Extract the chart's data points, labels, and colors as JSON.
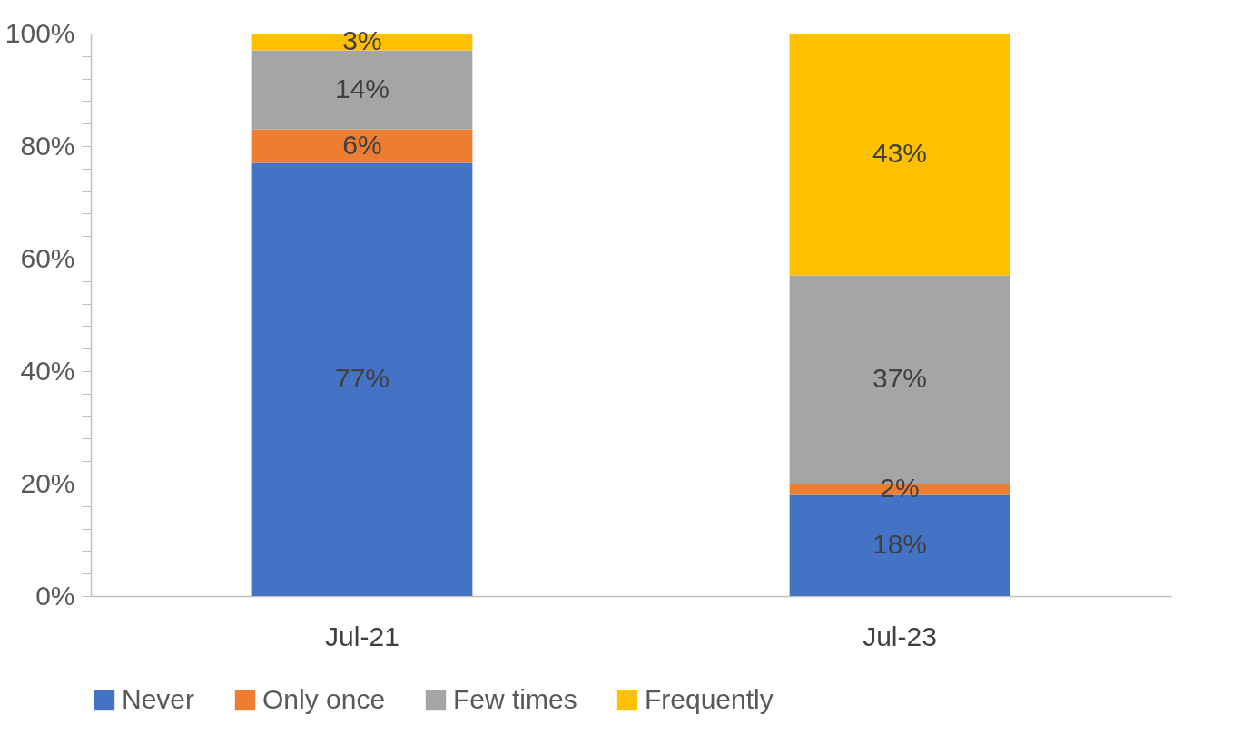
{
  "chart_data": {
    "type": "bar",
    "stacked": true,
    "categories": [
      "Jul-21",
      "Jul-23"
    ],
    "series": [
      {
        "name": "Never",
        "color": "#4472c4",
        "values": [
          77,
          18
        ],
        "value_labels": [
          "77%",
          "18%"
        ]
      },
      {
        "name": "Only once",
        "color": "#ed7d31",
        "values": [
          6,
          2
        ],
        "value_labels": [
          "6%",
          "2%"
        ]
      },
      {
        "name": "Few times",
        "color": "#a5a5a5",
        "values": [
          14,
          37
        ],
        "value_labels": [
          "14%",
          "37%"
        ]
      },
      {
        "name": "Frequently",
        "color": "#ffc000",
        "values": [
          3,
          43
        ],
        "value_labels": [
          "3%",
          "43%"
        ]
      }
    ],
    "ylim": [
      0,
      100
    ],
    "yticks": [
      {
        "value": 0,
        "label": "0%"
      },
      {
        "value": 4,
        "label": null
      },
      {
        "value": 8,
        "label": null
      },
      {
        "value": 12,
        "label": null
      },
      {
        "value": 16,
        "label": null
      },
      {
        "value": 20,
        "label": "20%"
      },
      {
        "value": 24,
        "label": null
      },
      {
        "value": 28,
        "label": null
      },
      {
        "value": 32,
        "label": null
      },
      {
        "value": 36,
        "label": null
      },
      {
        "value": 40,
        "label": "40%"
      },
      {
        "value": 44,
        "label": null
      },
      {
        "value": 48,
        "label": null
      },
      {
        "value": 52,
        "label": null
      },
      {
        "value": 56,
        "label": null
      },
      {
        "value": 60,
        "label": "60%"
      },
      {
        "value": 64,
        "label": null
      },
      {
        "value": 68,
        "label": null
      },
      {
        "value": 72,
        "label": null
      },
      {
        "value": 76,
        "label": null
      },
      {
        "value": 80,
        "label": "80%"
      },
      {
        "value": 84,
        "label": null
      },
      {
        "value": 88,
        "label": null
      },
      {
        "value": 92,
        "label": null
      },
      {
        "value": 96,
        "label": null
      },
      {
        "value": 100,
        "label": "100%"
      }
    ],
    "grid": false,
    "legend": "bottom"
  }
}
